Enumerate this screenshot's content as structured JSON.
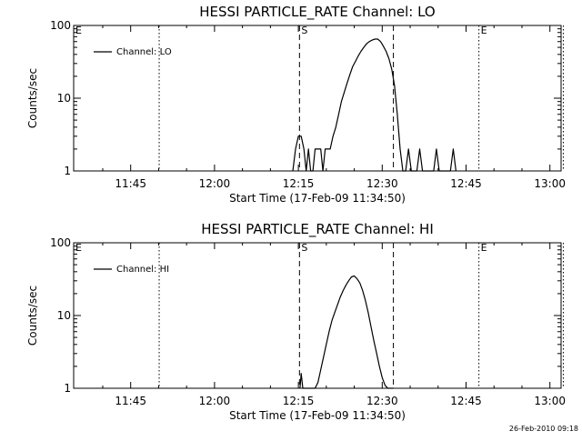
{
  "footer": {
    "timestamp": "26-Feb-2010 09:18"
  },
  "chart_data": [
    {
      "type": "line",
      "title": "HESSI PARTICLE_RATE Channel: LO",
      "xlabel": "Start Time (17-Feb-09 11:34:50)",
      "ylabel": "Counts/sec",
      "yscale": "log",
      "ylim": [
        1,
        100
      ],
      "xlim_minutes": [
        34.8,
        122.0
      ],
      "xticks": [
        {
          "value": 45,
          "label": "11:45"
        },
        {
          "value": 60,
          "label": "12:00"
        },
        {
          "value": 75,
          "label": "12:15"
        },
        {
          "value": 90,
          "label": "12:30"
        },
        {
          "value": 105,
          "label": "12:45"
        },
        {
          "value": 120,
          "label": "13:00"
        }
      ],
      "yticks": [
        {
          "value": 1,
          "label": "1"
        },
        {
          "value": 10,
          "label": "10"
        },
        {
          "value": 100,
          "label": "100"
        }
      ],
      "legend": {
        "position": "top-left",
        "entries": [
          "Channel: LO"
        ]
      },
      "markers": [
        {
          "x": 50.1,
          "style": "dotted",
          "label": ""
        },
        {
          "x": 75.2,
          "style": "dashed",
          "label": "S"
        },
        {
          "x": 92.0,
          "style": "dashed",
          "label": ""
        },
        {
          "x": 107.3,
          "style": "dotted",
          "label": "E"
        },
        {
          "x": 122.4,
          "style": "dotted",
          "label": ""
        }
      ],
      "corner_label": "E",
      "series": [
        {
          "name": "Channel: LO",
          "x": [
            74.0,
            74.5,
            75.0,
            75.5,
            76.0,
            76.4,
            76.8,
            77.2,
            77.6,
            78.0,
            78.4,
            79.0,
            79.4,
            79.8,
            80.2,
            80.7,
            81.2,
            81.7,
            82.2,
            82.7,
            83.2,
            83.7,
            84.2,
            84.7,
            85.2,
            85.7,
            86.2,
            86.7,
            87.2,
            87.7,
            88.2,
            88.7,
            89.2,
            89.7,
            90.2,
            90.7,
            91.2,
            91.7,
            92.2,
            92.7,
            93.2,
            93.7,
            94.2,
            94.7,
            95.2,
            95.7,
            96.2,
            96.7,
            97.2,
            97.7,
            98.2,
            98.7,
            99.2,
            99.7,
            100.2,
            100.7,
            101.2,
            101.7,
            102.2,
            102.7,
            103.2
          ],
          "y": [
            1.0,
            2.0,
            3.0,
            3.0,
            2.0,
            1.0,
            2.0,
            1.0,
            1.0,
            2.0,
            2.0,
            2.0,
            1.0,
            2.0,
            2.0,
            2.0,
            3.0,
            4.0,
            6.0,
            9.0,
            12.0,
            16.0,
            21.0,
            27.0,
            32.0,
            38.0,
            44.0,
            50.0,
            56.0,
            60.0,
            63.0,
            65.0,
            65.0,
            60.0,
            52.0,
            44.0,
            35.0,
            25.0,
            15.0,
            6.0,
            2.0,
            1.0,
            1.0,
            2.0,
            1.0,
            1.0,
            1.0,
            2.0,
            1.0,
            1.0,
            1.0,
            1.0,
            1.0,
            2.0,
            1.0,
            1.0,
            1.0,
            1.0,
            1.0,
            2.0,
            1.0
          ]
        }
      ]
    },
    {
      "type": "line",
      "title": "HESSI PARTICLE_RATE Channel: HI",
      "xlabel": "Start Time (17-Feb-09 11:34:50)",
      "ylabel": "Counts/sec",
      "yscale": "log",
      "ylim": [
        1,
        100
      ],
      "xlim_minutes": [
        34.8,
        122.0
      ],
      "xticks": [
        {
          "value": 45,
          "label": "11:45"
        },
        {
          "value": 60,
          "label": "12:00"
        },
        {
          "value": 75,
          "label": "12:15"
        },
        {
          "value": 90,
          "label": "12:30"
        },
        {
          "value": 105,
          "label": "12:45"
        },
        {
          "value": 120,
          "label": "13:00"
        }
      ],
      "yticks": [
        {
          "value": 1,
          "label": "1"
        },
        {
          "value": 10,
          "label": "10"
        },
        {
          "value": 100,
          "label": "100"
        }
      ],
      "legend": {
        "position": "top-left",
        "entries": [
          "Channel: HI"
        ]
      },
      "markers": [
        {
          "x": 50.1,
          "style": "dotted",
          "label": ""
        },
        {
          "x": 75.2,
          "style": "dashed",
          "label": "S"
        },
        {
          "x": 92.0,
          "style": "dashed",
          "label": ""
        },
        {
          "x": 107.3,
          "style": "dotted",
          "label": "E"
        },
        {
          "x": 122.4,
          "style": "dotted",
          "label": ""
        }
      ],
      "corner_label": "E",
      "series": [
        {
          "name": "Channel: HI",
          "x": [
            75.3,
            75.5,
            75.8,
            76.1,
            76.4,
            76.8,
            77.2,
            77.6,
            78.0,
            78.5,
            79.0,
            79.5,
            80.0,
            80.5,
            81.0,
            81.5,
            82.0,
            82.5,
            83.0,
            83.5,
            84.0,
            84.5,
            85.0,
            85.5,
            86.0,
            86.5,
            87.0,
            87.5,
            88.0,
            88.5,
            89.0,
            89.5,
            90.0,
            90.5,
            91.0,
            91.5,
            92.0
          ],
          "y": [
            1.0,
            1.6,
            1.0,
            1.0,
            1.0,
            1.0,
            1.0,
            1.0,
            1.0,
            1.2,
            1.8,
            2.7,
            4.0,
            6.0,
            8.5,
            11.0,
            14.0,
            18.0,
            22.0,
            26.0,
            30.0,
            34.0,
            35.0,
            32.0,
            28.0,
            22.0,
            16.0,
            11.0,
            7.0,
            4.5,
            3.0,
            2.0,
            1.4,
            1.1,
            1.0,
            1.0,
            1.0
          ]
        }
      ]
    }
  ]
}
